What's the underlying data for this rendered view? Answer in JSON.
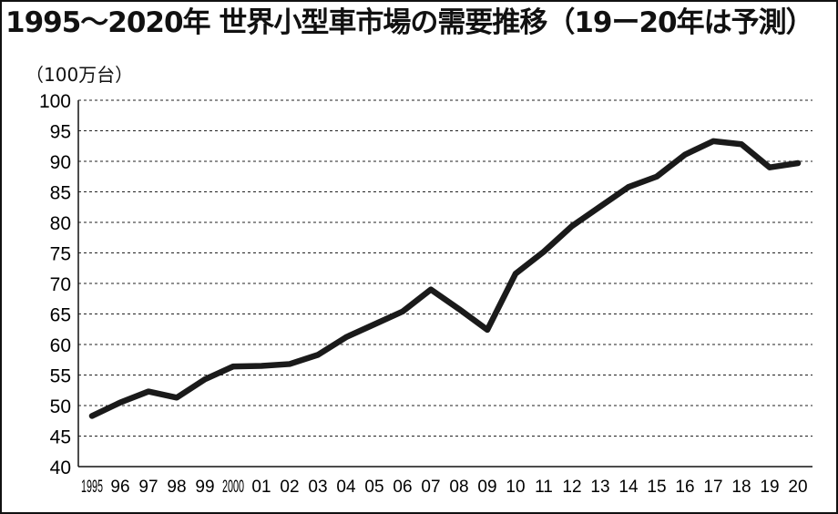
{
  "title": "1995〜2020年  世界小型車市場の需要推移（19ー20年は予測）",
  "unit_label": "（100万台）",
  "chart_data": {
    "type": "line",
    "title": "1995〜2020年  世界小型車市場の需要推移（19ー20年は予測）",
    "ylabel": "（100万台）",
    "xlabel": "",
    "ylim": [
      40,
      100
    ],
    "yticks": [
      40,
      45,
      50,
      55,
      60,
      65,
      70,
      75,
      80,
      85,
      90,
      95,
      100
    ],
    "grid": true,
    "categories": [
      "1995",
      "96",
      "97",
      "98",
      "99",
      "2000",
      "01",
      "02",
      "03",
      "04",
      "05",
      "06",
      "07",
      "08",
      "09",
      "10",
      "11",
      "12",
      "13",
      "14",
      "15",
      "16",
      "17",
      "18",
      "19",
      "20"
    ],
    "series": [
      {
        "values": [
          48.3,
          50.5,
          52.3,
          51.3,
          54.3,
          56.4,
          56.5,
          56.8,
          58.3,
          61.2,
          63.3,
          65.4,
          69.0,
          65.8,
          62.4,
          71.6,
          75.2,
          79.4,
          82.6,
          85.8,
          87.5,
          91.1,
          93.3,
          92.8,
          89.0,
          89.7
        ]
      }
    ],
    "line_color": "#1a1a1a"
  }
}
